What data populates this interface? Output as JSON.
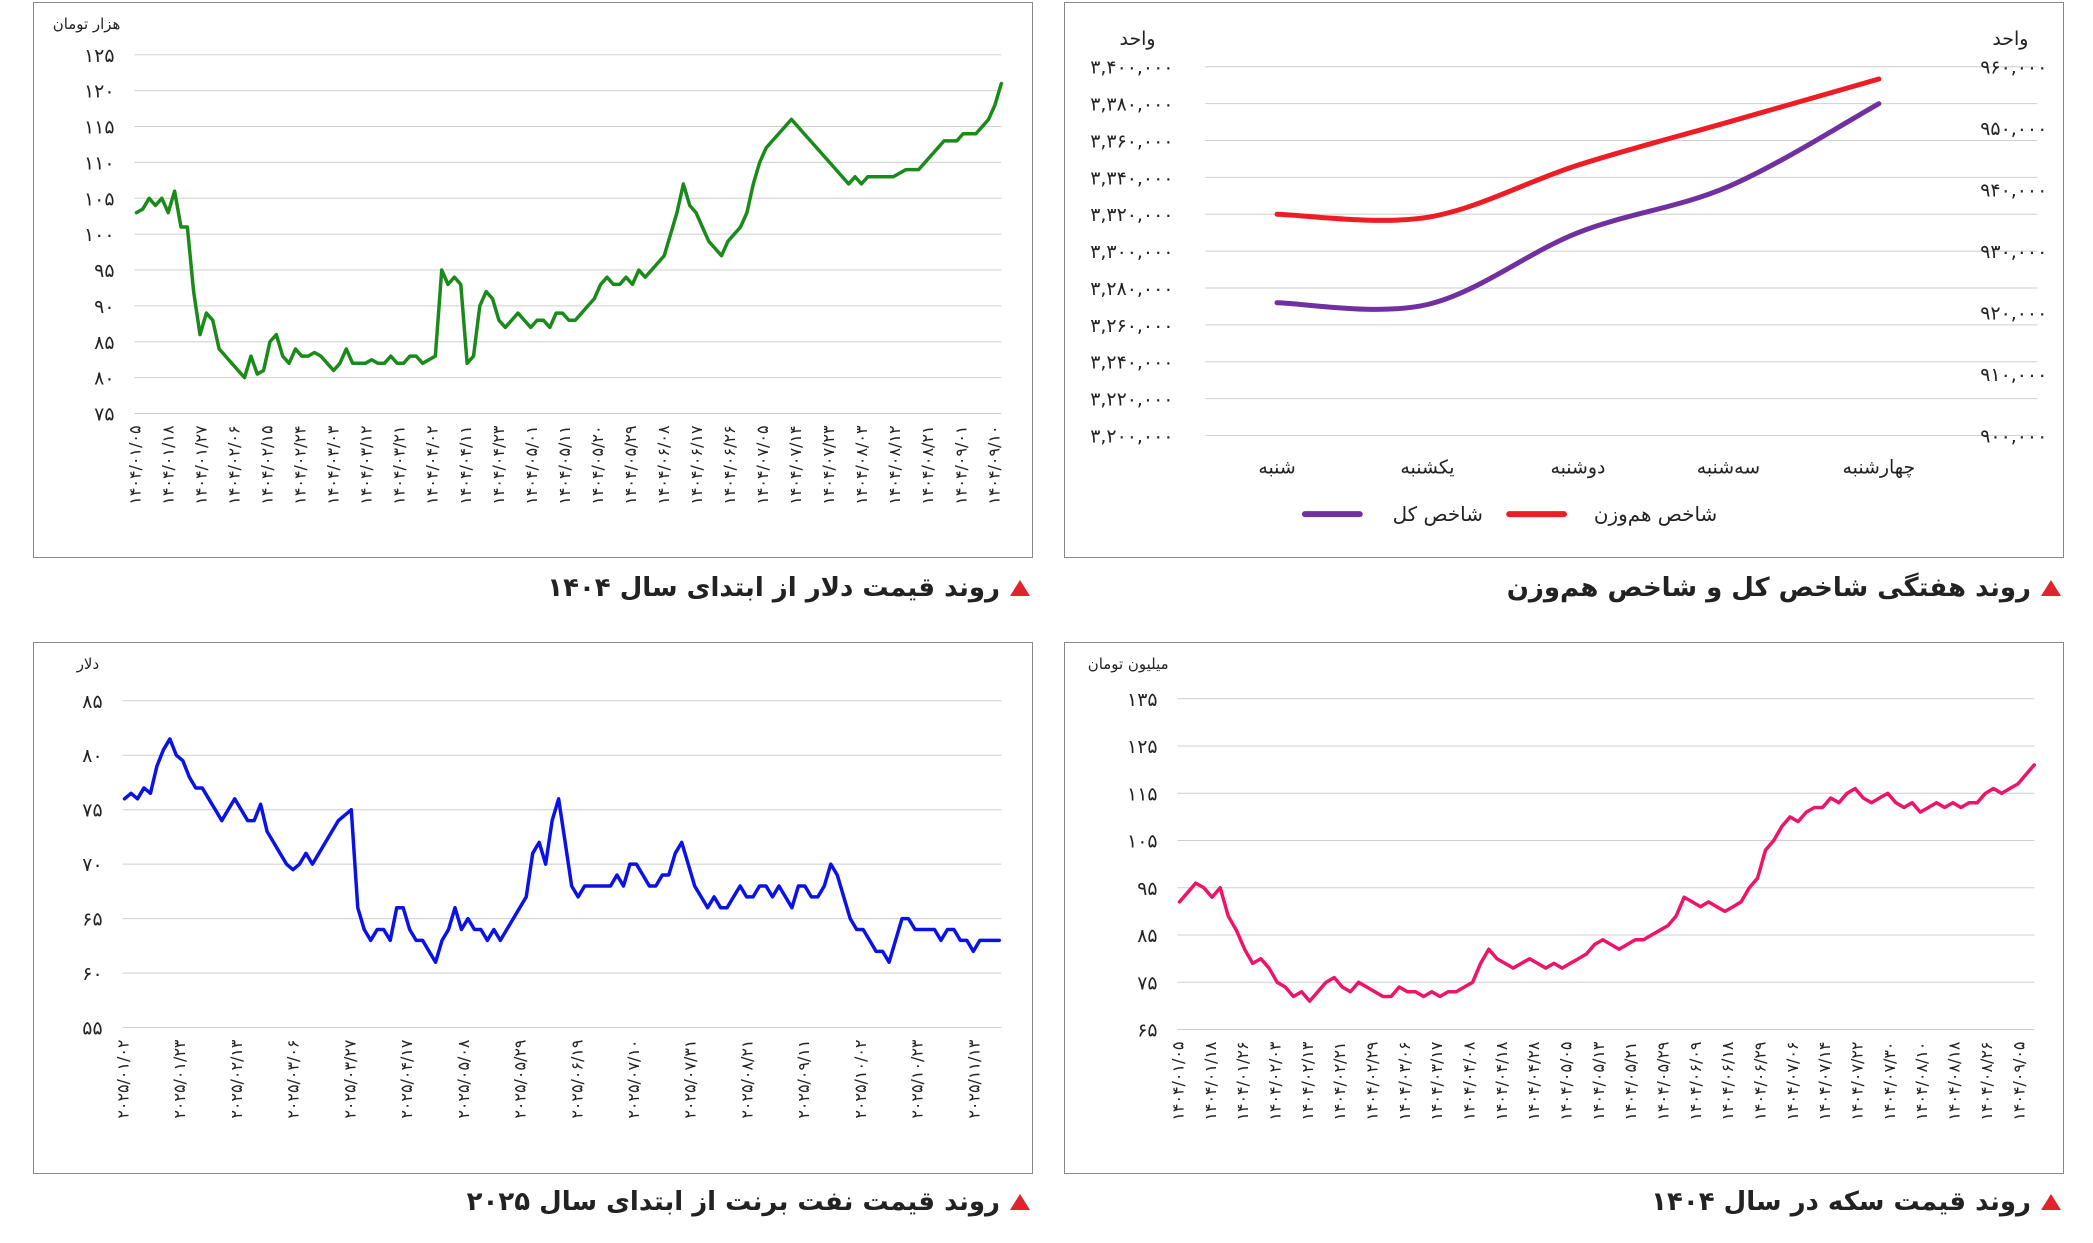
{
  "captions": {
    "weekly_index": "روند هفتگی شاخص کل و شاخص هم‌وزن",
    "dollar": "روند قیمت دلار از ابتدای سال ۱۴۰۴",
    "coin": "روند قیمت سکه در سال ۱۴۰۴",
    "brent": "روند قیمت نفت برنت از ابتدای سال ۲۰۲۵"
  },
  "chart_data": [
    {
      "id": "dollar",
      "type": "line",
      "unit_label": "هزار تومان",
      "ylim": [
        75,
        125
      ],
      "yticks": [
        75,
        80,
        85,
        90,
        95,
        100,
        105,
        110,
        115,
        120,
        125
      ],
      "ytick_labels": [
        "۷۵",
        "۸۰",
        "۸۵",
        "۹۰",
        "۹۵",
        "۱۰۰",
        "۱۰۵",
        "۱۱۰",
        "۱۱۵",
        "۱۲۰",
        "۱۲۵"
      ],
      "x_labels": [
        "۱۴۰۴/۰۱/۰۵",
        "۱۴۰۴/۰۱/۱۸",
        "۱۴۰۴/۰۱/۲۷",
        "۱۴۰۴/۰۲/۰۶",
        "۱۴۰۴/۰۲/۱۵",
        "۱۴۰۴/۰۲/۲۴",
        "۱۴۰۴/۰۳/۰۳",
        "۱۴۰۴/۰۳/۱۲",
        "۱۴۰۴/۰۳/۲۱",
        "۱۴۰۴/۰۴/۰۲",
        "۱۴۰۴/۰۴/۱۱",
        "۱۴۰۴/۰۴/۲۳",
        "۱۴۰۴/۰۵/۰۱",
        "۱۴۰۴/۰۵/۱۱",
        "۱۴۰۴/۰۵/۲۰",
        "۱۴۰۴/۰۵/۲۹",
        "۱۴۰۴/۰۶/۰۸",
        "۱۴۰۴/۰۶/۱۷",
        "۱۴۰۴/۰۶/۲۶",
        "۱۴۰۴/۰۷/۰۵",
        "۱۴۰۴/۰۷/۱۴",
        "۱۴۰۴/۰۷/۲۳",
        "۱۴۰۴/۰۸/۰۳",
        "۱۴۰۴/۰۸/۱۲",
        "۱۴۰۴/۰۸/۲۱",
        "۱۴۰۴/۰۹/۰۱",
        "۱۴۰۴/۰۹/۱۰"
      ],
      "color": "#1a8a1a",
      "values": [
        103,
        103.5,
        105,
        104,
        105,
        103,
        106,
        101,
        101,
        92,
        86,
        89,
        88,
        84,
        83,
        82,
        81,
        80,
        83,
        80.5,
        81,
        85,
        86,
        83,
        82,
        84,
        83,
        83,
        83.5,
        83,
        82,
        81,
        82,
        84,
        82,
        82,
        82,
        82.5,
        82,
        82,
        83,
        82,
        82,
        83,
        83,
        82,
        82.5,
        83,
        95,
        93,
        94,
        93,
        82,
        83,
        90,
        92,
        91,
        88,
        87,
        88,
        89,
        88,
        87,
        88,
        88,
        87,
        89,
        89,
        88,
        88,
        89,
        90,
        91,
        93,
        94,
        93,
        93,
        94,
        93,
        95,
        94,
        95,
        96,
        97,
        100,
        103,
        107,
        104,
        103,
        101,
        99,
        98,
        97,
        99,
        100,
        101,
        103,
        107,
        110,
        112,
        113,
        114,
        115,
        116,
        115,
        114,
        113,
        112,
        111,
        110,
        109,
        108,
        107,
        108,
        107,
        108,
        108,
        108,
        108,
        108,
        108.5,
        109,
        109,
        109,
        110,
        111,
        112,
        113,
        113,
        113,
        114,
        114,
        114,
        115,
        116,
        118,
        121
      ]
    },
    {
      "id": "weekly_index",
      "type": "line",
      "unit_left": "واحد",
      "unit_right": "واحد",
      "categories": [
        "شنبه",
        "یکشنبه",
        "دوشنبه",
        "سه‌شنبه",
        "چهارشنبه"
      ],
      "left_ylim": [
        3200000,
        3400000
      ],
      "left_ticks": [
        "۳,۲۰۰,۰۰۰",
        "۳,۲۲۰,۰۰۰",
        "۳,۲۴۰,۰۰۰",
        "۳,۲۶۰,۰۰۰",
        "۳,۲۸۰,۰۰۰",
        "۳,۳۰۰,۰۰۰",
        "۳,۳۲۰,۰۰۰",
        "۳,۳۴۰,۰۰۰",
        "۳,۳۶۰,۰۰۰",
        "۳,۳۸۰,۰۰۰",
        "۳,۴۰۰,۰۰۰"
      ],
      "right_ylim": [
        900000,
        960000
      ],
      "right_ticks": [
        "۹۰۰,۰۰۰",
        "۹۱۰,۰۰۰",
        "۹۲۰,۰۰۰",
        "۹۳۰,۰۰۰",
        "۹۴۰,۰۰۰",
        "۹۵۰,۰۰۰",
        "۹۶۰,۰۰۰"
      ],
      "series": [
        {
          "name": "شاخص کل",
          "axis": "left",
          "color": "#7030a0",
          "values": [
            3272000,
            3271000,
            3310000,
            3335000,
            3380000
          ]
        },
        {
          "name": "شاخص هم‌وزن",
          "axis": "right",
          "color": "#ee1c25",
          "values": [
            936000,
            935500,
            944000,
            951000,
            958000
          ]
        }
      ]
    },
    {
      "id": "brent",
      "type": "line",
      "unit_label": "دلار",
      "ylim": [
        55,
        85
      ],
      "yticks": [
        55,
        60,
        65,
        70,
        75,
        80,
        85
      ],
      "ytick_labels": [
        "۵۵",
        "۶۰",
        "۶۵",
        "۷۰",
        "۷۵",
        "۸۰",
        "۸۵"
      ],
      "x_labels": [
        "۲۰۲۵/۰۱/۰۲",
        "۲۰۲۵/۰۱/۲۳",
        "۲۰۲۵/۰۲/۱۳",
        "۲۰۲۵/۰۳/۰۶",
        "۲۰۲۵/۰۳/۲۷",
        "۲۰۲۵/۰۴/۱۷",
        "۲۰۲۵/۰۵/۰۸",
        "۲۰۲۵/۰۵/۲۹",
        "۲۰۲۵/۰۶/۱۹",
        "۲۰۲۵/۰۷/۱۰",
        "۲۰۲۵/۰۷/۳۱",
        "۲۰۲۵/۰۸/۲۱",
        "۲۰۲۵/۰۹/۱۱",
        "۲۰۲۵/۱۰/۰۲",
        "۲۰۲۵/۱۰/۲۳",
        "۲۰۲۵/۱۱/۱۳"
      ],
      "color": "#0a12e8",
      "values": [
        76,
        76.5,
        76,
        77,
        76.5,
        79,
        80.5,
        81.5,
        80,
        79.5,
        78,
        77,
        77,
        76,
        75,
        74,
        75,
        76,
        75,
        74,
        74,
        75.5,
        73,
        72,
        71,
        70,
        69.5,
        70,
        71,
        70,
        71,
        72,
        73,
        74,
        74.5,
        75,
        66,
        64,
        63,
        64,
        64,
        63,
        66,
        66,
        64,
        63,
        63,
        62,
        61,
        63,
        64,
        66,
        64,
        65,
        64,
        64,
        63,
        64,
        63,
        64,
        65,
        66,
        67,
        71,
        72,
        70,
        74,
        76,
        72,
        68,
        67,
        68,
        68,
        68,
        68,
        68,
        69,
        68,
        70,
        70,
        69,
        68,
        68,
        69,
        69,
        71,
        72,
        70,
        68,
        67,
        66,
        67,
        66,
        66,
        67,
        68,
        67,
        67,
        68,
        68,
        67,
        68,
        67,
        66,
        68,
        68,
        67,
        67,
        68,
        70,
        69,
        67,
        65,
        64,
        64,
        63,
        62,
        62,
        61,
        63,
        65,
        65,
        64,
        64,
        64,
        64,
        63,
        64,
        64,
        63,
        63,
        62,
        63,
        63,
        63,
        63
      ]
    },
    {
      "id": "coin",
      "type": "line",
      "unit_label": "میلیون تومان",
      "ylim": [
        65,
        135
      ],
      "yticks": [
        65,
        75,
        85,
        95,
        105,
        115,
        125,
        135
      ],
      "ytick_labels": [
        "۶۵",
        "۷۵",
        "۸۵",
        "۹۵",
        "۱۰۵",
        "۱۱۵",
        "۱۲۵",
        "۱۳۵"
      ],
      "x_labels": [
        "۱۴۰۴/۰۱/۰۵",
        "۱۴۰۴/۰۱/۱۸",
        "۱۴۰۴/۰۱/۲۶",
        "۱۴۰۴/۰۲/۰۳",
        "۱۴۰۴/۰۲/۱۳",
        "۱۴۰۴/۰۲/۲۱",
        "۱۴۰۴/۰۲/۲۹",
        "۱۴۰۴/۰۳/۰۶",
        "۱۴۰۴/۰۳/۱۷",
        "۱۴۰۴/۰۴/۰۸",
        "۱۴۰۴/۰۴/۱۸",
        "۱۴۰۴/۰۴/۲۸",
        "۱۴۰۴/۰۵/۰۵",
        "۱۴۰۴/۰۵/۱۳",
        "۱۴۰۴/۰۵/۲۱",
        "۱۴۰۴/۰۵/۲۹",
        "۱۴۰۴/۰۶/۰۹",
        "۱۴۰۴/۰۶/۱۸",
        "۱۴۰۴/۰۶/۲۹",
        "۱۴۰۴/۰۷/۰۶",
        "۱۴۰۴/۰۷/۱۴",
        "۱۴۰۴/۰۷/۲۲",
        "۱۴۰۴/۰۷/۳۰",
        "۱۴۰۴/۰۸/۱۰",
        "۱۴۰۴/۰۸/۱۸",
        "۱۴۰۴/۰۸/۲۶",
        "۱۴۰۴/۰۹/۰۵"
      ],
      "color": "#ee1469",
      "values": [
        92,
        94,
        96,
        95,
        93,
        95,
        89,
        86,
        82,
        79,
        80,
        78,
        75,
        74,
        72,
        73,
        71,
        73,
        75,
        76,
        74,
        73,
        75,
        74,
        73,
        72,
        72,
        74,
        73,
        73,
        72,
        73,
        72,
        73,
        73,
        74,
        75,
        79,
        82,
        80,
        79,
        78,
        79,
        80,
        79,
        78,
        79,
        78,
        79,
        80,
        81,
        83,
        84,
        83,
        82,
        83,
        84,
        84,
        85,
        86,
        87,
        89,
        93,
        92,
        91,
        92,
        91,
        90,
        91,
        92,
        95,
        97,
        103,
        105,
        108,
        110,
        109,
        111,
        112,
        112,
        114,
        113,
        115,
        116,
        114,
        113,
        114,
        115,
        113,
        112,
        113,
        111,
        112,
        113,
        112,
        113,
        112,
        113,
        113,
        115,
        116,
        115,
        116,
        117,
        119,
        121
      ]
    }
  ]
}
